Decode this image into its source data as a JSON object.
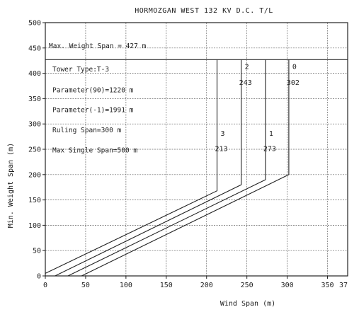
{
  "chart_data": {
    "type": "line",
    "title": "HORMOZGAN WEST  132 KV D.C. T/L",
    "xlabel": "Wind Span (m)",
    "ylabel": "Min. Weight Span (m)",
    "xlim": [
      0,
      375
    ],
    "ylim": [
      0,
      500
    ],
    "xticks": [
      "0",
      "50",
      "100",
      "150",
      "200",
      "250",
      "300",
      "350",
      "37"
    ],
    "yticks": [
      "0",
      "50",
      "100",
      "150",
      "200",
      "250",
      "300",
      "350",
      "400",
      "450",
      "500"
    ],
    "grid": true,
    "max_weight_span": {
      "label": "Max. Weight Span =  427 m",
      "value": 427
    },
    "info_lines": [
      "Tower Type:T-3",
      "Parameter(90)=1220 m",
      "Parameter(-1)=1991 m",
      "Ruling Span=300 m",
      "Max Single Span=500 m"
    ],
    "series": [
      {
        "name": "0",
        "value_label": "302",
        "points": [
          [
            45,
            0
          ],
          [
            302,
            200
          ],
          [
            302,
            427
          ]
        ]
      },
      {
        "name": "1",
        "value_label": "273",
        "points": [
          [
            28,
            0
          ],
          [
            273,
            190
          ],
          [
            273,
            427
          ]
        ]
      },
      {
        "name": "2",
        "value_label": "243",
        "points": [
          [
            12,
            0
          ],
          [
            243,
            180
          ],
          [
            243,
            427
          ]
        ]
      },
      {
        "name": "3",
        "value_label": "213",
        "points": [
          [
            0,
            5
          ],
          [
            213,
            168
          ],
          [
            213,
            427
          ]
        ]
      }
    ]
  }
}
